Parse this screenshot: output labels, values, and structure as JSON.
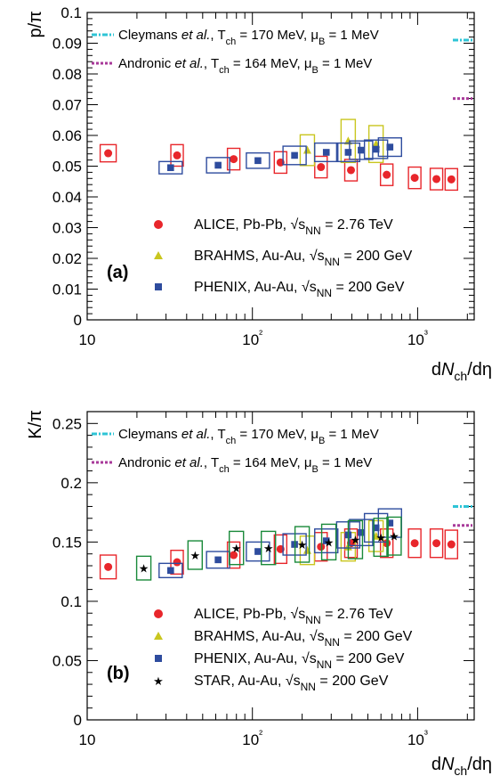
{
  "chart_data": [
    {
      "type": "scatter",
      "panel_label": "(a)",
      "ylabel": "p/π",
      "xlabel": "dN_ch/dη",
      "xscale": "log",
      "xlim": [
        10,
        2200
      ],
      "ylim": [
        0,
        0.1
      ],
      "y_ticks": [
        "0",
        "0.01",
        "0.02",
        "0.03",
        "0.04",
        "0.05",
        "0.06",
        "0.07",
        "0.08",
        "0.09",
        "0.1"
      ],
      "x_ticks": [
        "10",
        "10²",
        "10³"
      ],
      "legend_position": "bottom-center",
      "models": [
        {
          "name": "Cleymans et al., T_ch = 170 MeV, μ_B = 1 MeV",
          "color": "#2ec4d6",
          "style": "dash-dot",
          "value": 0.091
        },
        {
          "name": "Andronic et al., T_ch = 164 MeV, μ_B = 1 MeV",
          "color": "#a83a9a",
          "style": "dotted",
          "value": 0.072
        }
      ],
      "series": [
        {
          "name": "ALICE, Pb-Pb, √s_NN = 2.76 TeV",
          "marker": "circle",
          "color": "#e8262b",
          "x": [
            13.4,
            35,
            77,
            148,
            260,
            395,
            650,
            960,
            1300,
            1600
          ],
          "y": [
            0.0542,
            0.0535,
            0.0523,
            0.0512,
            0.0497,
            0.0487,
            0.0472,
            0.0462,
            0.0458,
            0.0457
          ],
          "sys": [
            0.0028,
            0.0035,
            0.0035,
            0.0035,
            0.0035,
            0.0035,
            0.0035,
            0.0035,
            0.0035,
            0.0035
          ]
        },
        {
          "name": "BRAHMS, Au-Au, √s_NN = 200 GeV",
          "marker": "triangle",
          "color": "#c9c61f",
          "x": [
            215,
            380,
            560
          ],
          "y": [
            0.0552,
            0.0582,
            0.0572
          ],
          "sys": [
            0.005,
            0.007,
            0.006
          ]
        },
        {
          "name": "PHENIX, Au-Au, √s_NN = 200 GeV",
          "marker": "square",
          "color": "#2e4c9e",
          "x": [
            32,
            62,
            108,
            180,
            280,
            380,
            455,
            560,
            680
          ],
          "y": [
            0.0495,
            0.0503,
            0.0518,
            0.0535,
            0.0545,
            0.0545,
            0.0552,
            0.0555,
            0.0562
          ],
          "sys": [
            0.002,
            0.0025,
            0.0025,
            0.003,
            0.003,
            0.003,
            0.003,
            0.003,
            0.003
          ]
        }
      ]
    },
    {
      "type": "scatter",
      "panel_label": "(b)",
      "ylabel": "K/π",
      "xlabel": "dN_ch/dη",
      "xscale": "log",
      "xlim": [
        10,
        2200
      ],
      "ylim": [
        0,
        0.26
      ],
      "y_ticks": [
        "0",
        "0.05",
        "0.1",
        "0.15",
        "0.2",
        "0.25"
      ],
      "x_ticks": [
        "10",
        "10²",
        "10³"
      ],
      "legend_position": "bottom-center",
      "models": [
        {
          "name": "Cleymans et al., T_ch = 170 MeV, μ_B = 1 MeV",
          "color": "#2ec4d6",
          "style": "dash-dot",
          "value": 0.18
        },
        {
          "name": "Andronic et al., T_ch = 164 MeV, μ_B = 1 MeV",
          "color": "#a83a9a",
          "style": "dotted",
          "value": 0.164
        }
      ],
      "series": [
        {
          "name": "ALICE, Pb-Pb, √s_NN = 2.76 TeV",
          "marker": "circle",
          "color": "#e8262b",
          "x": [
            13.4,
            35,
            77,
            148,
            260,
            395,
            650,
            960,
            1300,
            1600
          ],
          "y": [
            0.129,
            0.133,
            0.139,
            0.144,
            0.146,
            0.149,
            0.149,
            0.149,
            0.149,
            0.148
          ],
          "sys": [
            0.01,
            0.01,
            0.011,
            0.012,
            0.012,
            0.012,
            0.012,
            0.012,
            0.012,
            0.012
          ]
        },
        {
          "name": "BRAHMS, Au-Au, √s_NN = 200 GeV",
          "marker": "triangle",
          "color": "#c9c61f",
          "x": [
            215,
            380,
            560
          ],
          "y": [
            0.143,
            0.146,
            0.155
          ],
          "sys": [
            0.012,
            0.012,
            0.013
          ]
        },
        {
          "name": "PHENIX, Au-Au, √s_NN = 200 GeV",
          "marker": "square",
          "color": "#2e4c9e",
          "x": [
            32,
            62,
            108,
            180,
            280,
            380,
            455,
            560,
            680
          ],
          "y": [
            0.126,
            0.135,
            0.142,
            0.148,
            0.151,
            0.156,
            0.158,
            0.162,
            0.166
          ],
          "sys": [
            0.006,
            0.007,
            0.008,
            0.009,
            0.01,
            0.011,
            0.011,
            0.012,
            0.012
          ]
        },
        {
          "name": "STAR, Au-Au, √s_NN = 200 GeV",
          "marker": "star",
          "color": "#1a8a3a",
          "x": [
            22,
            45,
            80,
            125,
            200,
            290,
            420,
            600,
            720
          ],
          "y": [
            0.128,
            0.139,
            0.145,
            0.145,
            0.148,
            0.15,
            0.152,
            0.154,
            0.155
          ],
          "sys": [
            0.01,
            0.012,
            0.014,
            0.014,
            0.015,
            0.015,
            0.016,
            0.016,
            0.016
          ]
        }
      ]
    }
  ]
}
